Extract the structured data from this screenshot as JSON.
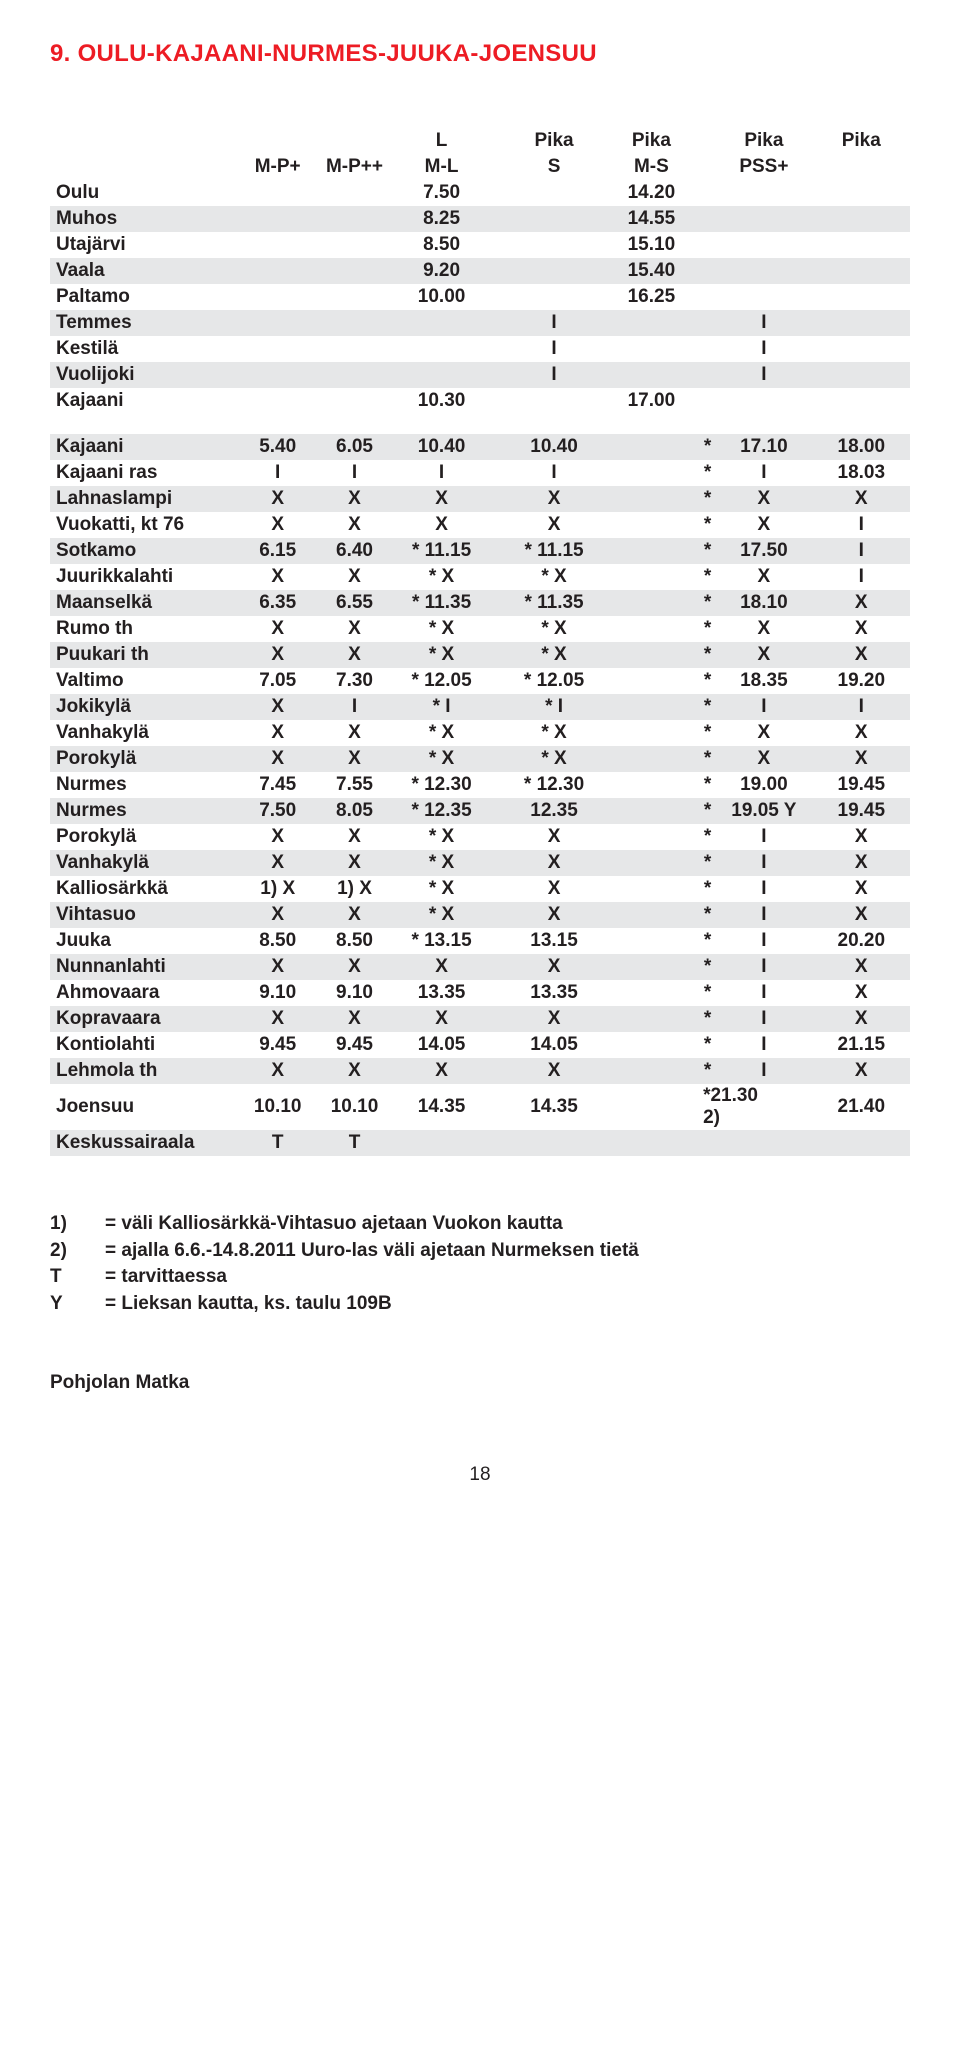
{
  "title": "9. OULU-KAJAANI-NURMES-JUUKA-JOENSUU",
  "headers": {
    "r1": [
      "",
      "",
      "",
      "L",
      "",
      "Pika",
      "Pika",
      "",
      "Pika",
      "Pika"
    ],
    "r2": [
      "",
      "M-P+",
      "M-P++",
      "M-L",
      "",
      "S",
      "M-S",
      "",
      "PSS+"
    ]
  },
  "block1": [
    {
      "alt": false,
      "label": "Oulu",
      "c": [
        "",
        "",
        "7.50",
        "",
        "",
        "14.20",
        "",
        "",
        ""
      ]
    },
    {
      "alt": true,
      "label": "Muhos",
      "c": [
        "",
        "",
        "8.25",
        "",
        "",
        "14.55",
        "",
        "",
        ""
      ]
    },
    {
      "alt": false,
      "label": "Utajärvi",
      "c": [
        "",
        "",
        "8.50",
        "",
        "",
        "15.10",
        "",
        "",
        ""
      ]
    },
    {
      "alt": true,
      "label": "Vaala",
      "c": [
        "",
        "",
        "9.20",
        "",
        "",
        "15.40",
        "",
        "",
        ""
      ]
    },
    {
      "alt": false,
      "label": "Paltamo",
      "c": [
        "",
        "",
        "10.00",
        "",
        "",
        "16.25",
        "",
        "",
        ""
      ]
    },
    {
      "alt": true,
      "label": "Temmes",
      "c": [
        "",
        "",
        "",
        "",
        "I",
        "",
        "",
        "I",
        ""
      ]
    },
    {
      "alt": false,
      "label": "Kestilä",
      "c": [
        "",
        "",
        "",
        "",
        "I",
        "",
        "",
        "I",
        ""
      ]
    },
    {
      "alt": true,
      "label": "Vuolijoki",
      "c": [
        "",
        "",
        "",
        "",
        "I",
        "",
        "",
        "I",
        ""
      ]
    },
    {
      "alt": false,
      "label": "Kajaani",
      "c": [
        "",
        "",
        "10.30",
        "",
        "",
        "17.00",
        "",
        "",
        ""
      ]
    }
  ],
  "block2": [
    {
      "alt": true,
      "label": "Kajaani",
      "c": [
        "5.40",
        "6.05",
        "10.40",
        "",
        "10.40",
        "",
        "*",
        "17.10",
        "18.00"
      ]
    },
    {
      "alt": false,
      "label": "Kajaani ras",
      "c": [
        "I",
        "I",
        "I",
        "",
        "I",
        "",
        "*",
        "I",
        "18.03"
      ]
    },
    {
      "alt": true,
      "label": "Lahnaslampi",
      "c": [
        "X",
        "X",
        "X",
        "",
        "X",
        "",
        "*",
        "X",
        "X"
      ]
    },
    {
      "alt": false,
      "label": "Vuokatti, kt 76",
      "c": [
        "X",
        "X",
        "X",
        "",
        "X",
        "",
        "*",
        "X",
        "I"
      ]
    },
    {
      "alt": true,
      "label": "Sotkamo",
      "c": [
        "6.15",
        "6.40",
        "* 11.15",
        "",
        "* 11.15",
        "",
        "*",
        "17.50",
        "I"
      ]
    },
    {
      "alt": false,
      "label": "Juurikkalahti",
      "c": [
        "X",
        "X",
        "* X",
        "",
        "* X",
        "",
        "*",
        "X",
        "I"
      ]
    },
    {
      "alt": true,
      "label": "Maanselkä",
      "c": [
        "6.35",
        "6.55",
        "* 11.35",
        "",
        "* 11.35",
        "",
        "*",
        "18.10",
        "X"
      ]
    },
    {
      "alt": false,
      "label": "Rumo th",
      "c": [
        "X",
        "X",
        "* X",
        "",
        "* X",
        "",
        "*",
        "X",
        "X"
      ]
    },
    {
      "alt": true,
      "label": "Puukari th",
      "c": [
        "X",
        "X",
        "* X",
        "",
        "* X",
        "",
        "*",
        "X",
        "X"
      ]
    },
    {
      "alt": false,
      "label": "Valtimo",
      "c": [
        "7.05",
        "7.30",
        "* 12.05",
        "",
        "* 12.05",
        "",
        "*",
        "18.35",
        "19.20"
      ]
    },
    {
      "alt": true,
      "label": "Jokikylä",
      "c": [
        "X",
        "I",
        "* I",
        "",
        "* I",
        "",
        "*",
        "I",
        "I"
      ]
    },
    {
      "alt": false,
      "label": "Vanhakylä",
      "c": [
        "X",
        "X",
        "* X",
        "",
        "* X",
        "",
        "*",
        "X",
        "X"
      ]
    },
    {
      "alt": true,
      "label": "Porokylä",
      "c": [
        "X",
        "X",
        "* X",
        "",
        "* X",
        "",
        "*",
        "X",
        "X"
      ]
    },
    {
      "alt": false,
      "label": "Nurmes",
      "c": [
        "7.45",
        "7.55",
        "* 12.30",
        "",
        "* 12.30",
        "",
        "*",
        "19.00",
        "19.45"
      ]
    },
    {
      "alt": true,
      "label": "Nurmes",
      "c": [
        "7.50",
        "8.05",
        "* 12.35",
        "",
        "12.35",
        "",
        "*",
        "19.05 Y",
        "19.45"
      ]
    },
    {
      "alt": false,
      "label": "Porokylä",
      "c": [
        "X",
        "X",
        "* X",
        "",
        "X",
        "",
        "*",
        "I",
        "X"
      ]
    },
    {
      "alt": true,
      "label": "Vanhakylä",
      "c": [
        "X",
        "X",
        "* X",
        "",
        "X",
        "",
        "*",
        "I",
        "X"
      ]
    },
    {
      "alt": false,
      "label": "Kalliosärkkä",
      "c": [
        "1) X",
        "1) X",
        "* X",
        "",
        "X",
        "",
        "*",
        "I",
        "X"
      ]
    },
    {
      "alt": true,
      "label": "Vihtasuo",
      "c": [
        "X",
        "X",
        "* X",
        "",
        "X",
        "",
        "*",
        "I",
        "X"
      ]
    },
    {
      "alt": false,
      "label": "Juuka",
      "c": [
        "8.50",
        "8.50",
        "* 13.15",
        "",
        "13.15",
        "",
        "*",
        "I",
        "20.20"
      ]
    },
    {
      "alt": true,
      "label": "Nunnanlahti",
      "c": [
        "X",
        "X",
        "X",
        "",
        "X",
        "",
        "*",
        "I",
        "X"
      ]
    },
    {
      "alt": false,
      "label": "Ahmovaara",
      "c": [
        "9.10",
        "9.10",
        "13.35",
        "",
        "13.35",
        "",
        "*",
        "I",
        "X"
      ]
    },
    {
      "alt": true,
      "label": "Kopravaara",
      "c": [
        "X",
        "X",
        "X",
        "",
        "X",
        "",
        "*",
        "I",
        "X"
      ]
    },
    {
      "alt": false,
      "label": "Kontiolahti",
      "c": [
        "9.45",
        "9.45",
        "14.05",
        "",
        "14.05",
        "",
        "*",
        "I",
        "21.15"
      ]
    },
    {
      "alt": true,
      "label": "Lehmola th",
      "c": [
        "X",
        "X",
        "X",
        "",
        "X",
        "",
        "*",
        "I",
        "X"
      ]
    },
    {
      "alt": false,
      "label": "Joensuu",
      "c": [
        "10.10",
        "10.10",
        "14.35",
        "",
        "14.35",
        "",
        "*21.30 2)",
        "",
        "21.40"
      ]
    },
    {
      "alt": true,
      "label": "Keskussairaala",
      "c": [
        "T",
        "T",
        "",
        "",
        "",
        "",
        "",
        "",
        ""
      ]
    }
  ],
  "footnotes": [
    {
      "k": "1)",
      "t": "= väli Kalliosärkkä-Vihtasuo ajetaan Vuokon kautta"
    },
    {
      "k": "2)",
      "t": "= ajalla 6.6.-14.8.2011 Uuro-las väli ajetaan Nurmeksen tietä"
    },
    {
      "k": "T",
      "t": "= tarvittaessa"
    },
    {
      "k": "Y",
      "t": "= Lieksan kautta, ks. taulu 109B"
    }
  ],
  "operator": "Pohjolan Matka",
  "page": "18",
  "colors": {
    "title": "#ed1c24",
    "text": "#231f20",
    "stripe": "#e6e7e8",
    "bg": "#ffffff"
  }
}
